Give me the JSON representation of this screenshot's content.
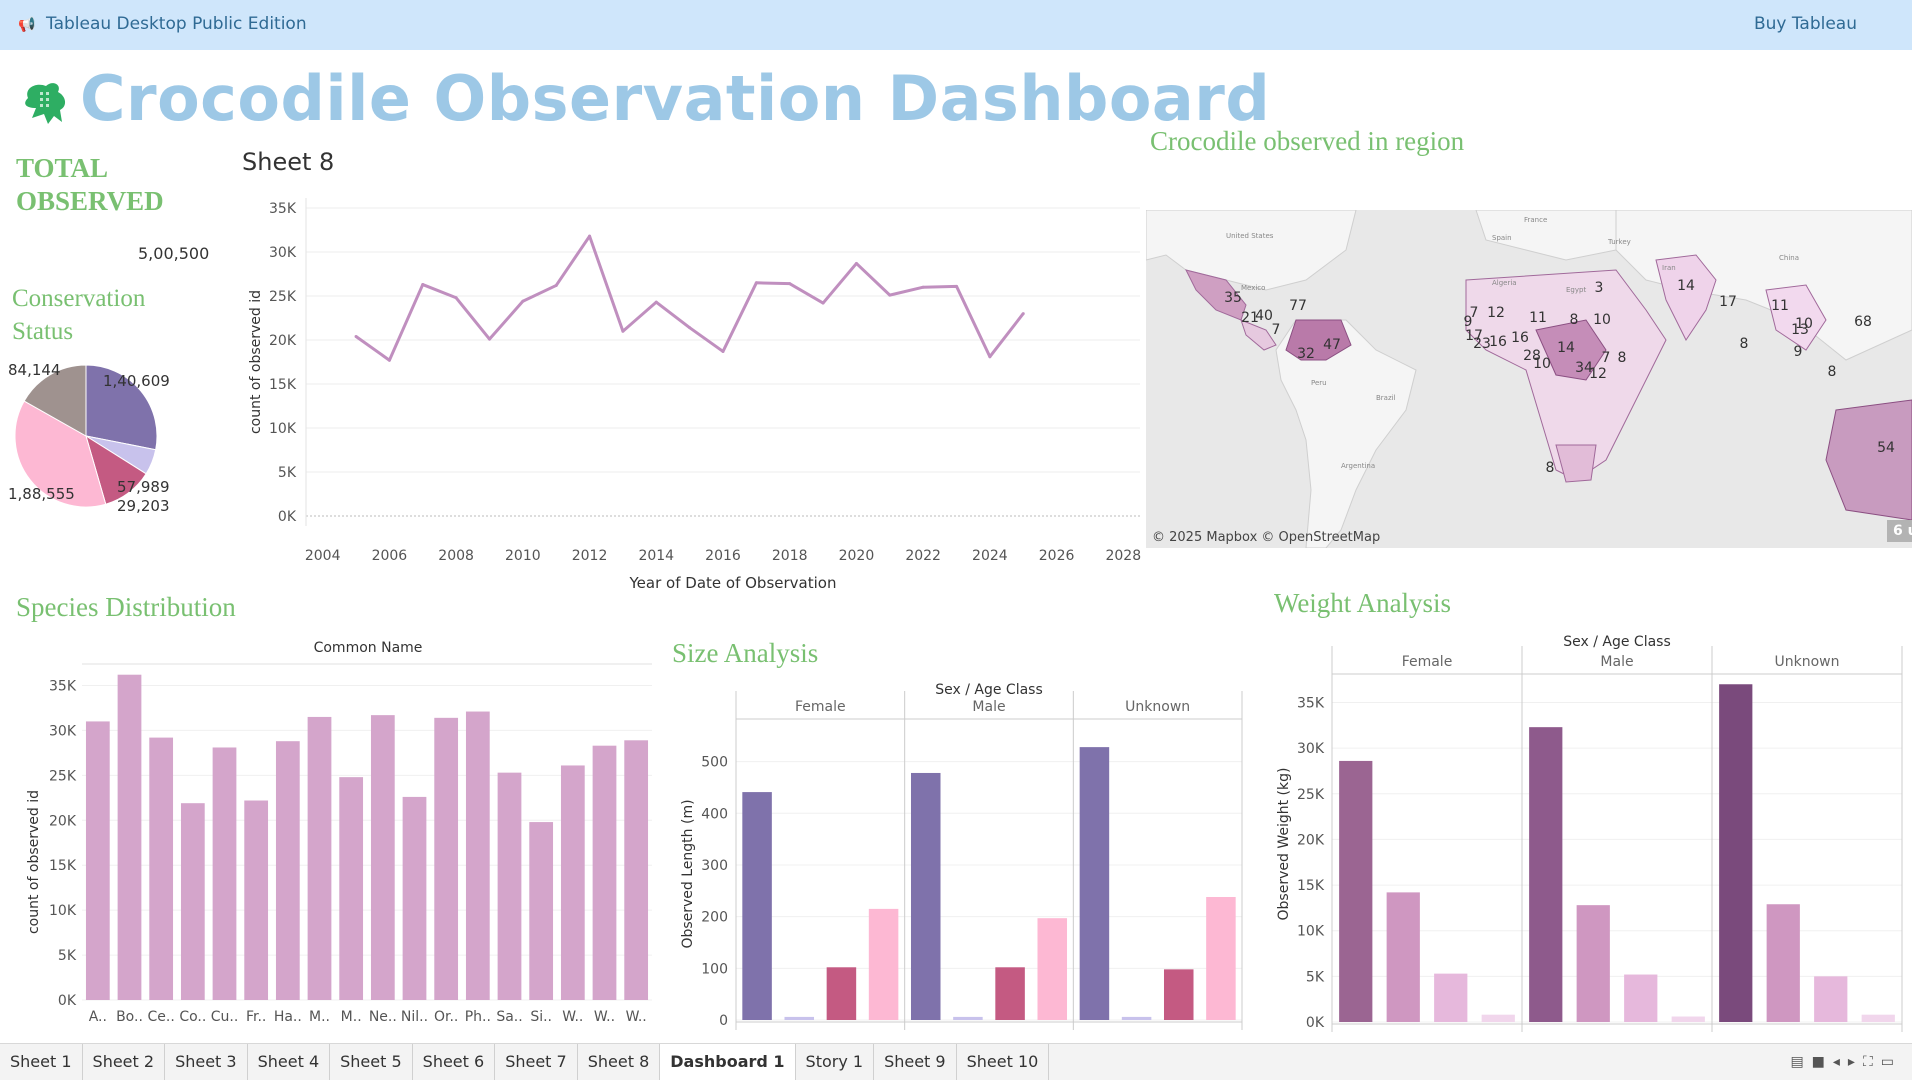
{
  "topbar": {
    "product": "Tableau Desktop Public Edition",
    "buy": "Buy Tableau"
  },
  "dashboard": {
    "title": "Crocodile Observation Dashboard",
    "kpi": {
      "title_line1": "TOTAL",
      "title_line2": "OBSERVED",
      "value": "5,00,500"
    },
    "conservation": {
      "title_line1": "Conservation",
      "title_line2": "Status"
    },
    "sheet8_title": "Sheet 8",
    "map": {
      "title": "Crocodile  observed in region",
      "attribution": "© 2025 Mapbox © OpenStreetMap",
      "badge": "6 u"
    },
    "species_title": "Species Distribution",
    "size_title": "Size  Analysis",
    "weight_title": "Weight Analysis"
  },
  "colors": {
    "accent_title": "#9dc8e6",
    "section_green": "#79c071",
    "line": "#c08fbf",
    "species_bar": "#d4a5cb",
    "female": "#7f72ab",
    "juvenile": "#c8c2ec",
    "male_red": "#c45a82",
    "pink": "#fdb8d3"
  },
  "chart_data": [
    {
      "type": "pie",
      "title": "Conservation Status",
      "values": [
        140609,
        29203,
        57989,
        188555,
        84144
      ],
      "labels": [
        "1,40,609",
        "29,203",
        "57,989",
        "1,88,555",
        "84,144"
      ],
      "colors": [
        "#7f72ab",
        "#c8c2ec",
        "#c45a82",
        "#fdb8d3",
        "#9f928f"
      ]
    },
    {
      "type": "line",
      "title": "Sheet 8",
      "xlabel": "Year of Date of Observation",
      "ylabel": "count of observed id",
      "x": [
        2005,
        2006,
        2007,
        2008,
        2009,
        2010,
        2011,
        2012,
        2013,
        2014,
        2015,
        2016,
        2017,
        2018,
        2019,
        2020,
        2021,
        2022,
        2023,
        2024,
        2025
      ],
      "values": [
        20400,
        17700,
        26300,
        24800,
        20100,
        24400,
        26200,
        31800,
        21000,
        24300,
        21400,
        18700,
        26500,
        26400,
        24200,
        28700,
        25100,
        26000,
        26100,
        18100,
        23000
      ],
      "xticks": [
        "2004",
        "2006",
        "2008",
        "2010",
        "2012",
        "2014",
        "2016",
        "2018",
        "2020",
        "2022",
        "2024",
        "2026",
        "2028"
      ],
      "yticks": [
        "0K",
        "5K",
        "10K",
        "15K",
        "20K",
        "25K",
        "30K",
        "35K"
      ],
      "xlim": [
        2003.5,
        2028.5
      ],
      "ylim": [
        0,
        35000
      ]
    },
    {
      "type": "bar",
      "title": "Common Name",
      "ylabel": "count of observed id",
      "categories": [
        "A..",
        "Bo..",
        "Ce..",
        "Co..",
        "Cu..",
        "Fr..",
        "Ha..",
        "M..",
        "M..",
        "Ne..",
        "Nil..",
        "Or..",
        "Ph..",
        "Sa..",
        "Si..",
        "W..",
        "W..",
        "W.."
      ],
      "values": [
        31000,
        36200,
        29200,
        21900,
        28100,
        22200,
        28800,
        31500,
        24800,
        31700,
        22600,
        31400,
        32100,
        25300,
        19800,
        26100,
        28300,
        28900
      ],
      "yticks": [
        "0K",
        "5K",
        "10K",
        "15K",
        "20K",
        "25K",
        "30K",
        "35K"
      ],
      "ylim": [
        0,
        36500
      ]
    },
    {
      "type": "bar",
      "title": "Size  Analysis",
      "header": "Sex / Age Class",
      "ylabel": "Observed Length (m)",
      "groups": [
        "Female",
        "Male",
        "Unknown"
      ],
      "series": [
        {
          "values": [
            441,
            478,
            528
          ],
          "color": "#7f72ab"
        },
        {
          "values": [
            6,
            6,
            6
          ],
          "color": "#c8c2ec"
        },
        {
          "values": [
            102,
            102,
            98
          ],
          "color": "#c45a82"
        },
        {
          "values": [
            215,
            197,
            238
          ],
          "color": "#fdb8d3"
        }
      ],
      "yticks": [
        "0",
        "100",
        "200",
        "300",
        "400",
        "500"
      ],
      "ylim": [
        0,
        565
      ]
    },
    {
      "type": "bar",
      "title": "Weight Analysis",
      "header": "Sex / Age Class",
      "ylabel": "Observed Weight (kg)",
      "groups": [
        "Female",
        "Male",
        "Unknown"
      ],
      "series": [
        {
          "values": [
            28600,
            32300,
            37000
          ],
          "colors": [
            "#9b6592",
            "#8e5a8c",
            "#7a4a7c"
          ]
        },
        {
          "values": [
            14200,
            12800,
            12900
          ],
          "color": "#cf97c1"
        },
        {
          "values": [
            5300,
            5200,
            5000
          ],
          "color": "#e6b8dc"
        },
        {
          "values": [
            800,
            600,
            800
          ],
          "color": "#f1d6ec"
        }
      ],
      "yticks": [
        "0K",
        "5K",
        "10K",
        "15K",
        "20K",
        "25K",
        "30K",
        "35K"
      ],
      "ylim": [
        0,
        39000
      ]
    }
  ],
  "map_labels": [
    "35",
    "40",
    "21",
    "77",
    "7",
    "32",
    "47",
    "7",
    "12",
    "11",
    "8",
    "10",
    "3",
    "9",
    "17",
    "23",
    "16",
    "16",
    "28",
    "10",
    "34",
    "14",
    "7",
    "8",
    "12",
    "8",
    "14",
    "17",
    "11",
    "10",
    "13",
    "9",
    "8",
    "68",
    "8",
    "54"
  ],
  "map_countries": [
    "United States",
    "Mexico",
    "Brazil",
    "Peru",
    "Argentina",
    "Algeria",
    "Egypt",
    "Turkey",
    "Iran",
    "China",
    "Spain",
    "France"
  ],
  "tabs": [
    "Sheet 1",
    "Sheet 2",
    "Sheet 3",
    "Sheet 4",
    "Sheet 5",
    "Sheet 6",
    "Sheet 7",
    "Sheet 8",
    "Dashboard 1",
    "Story 1",
    "Sheet 9",
    "Sheet 10"
  ],
  "active_tab": "Dashboard 1"
}
